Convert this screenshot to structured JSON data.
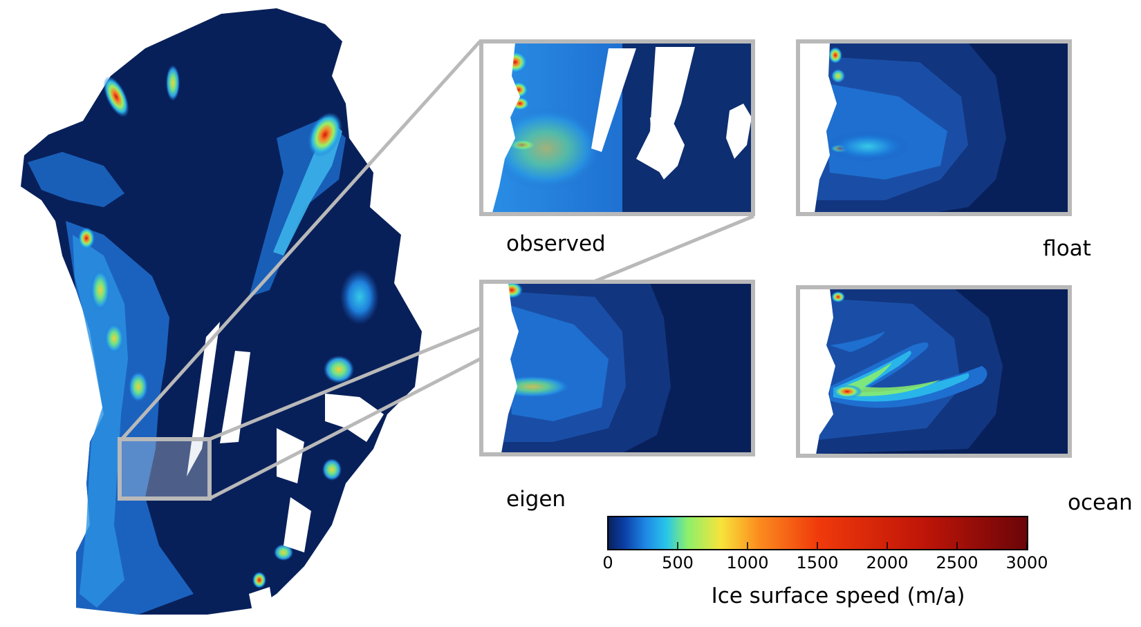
{
  "panels": {
    "observed": "observed",
    "float": "float",
    "eigen": "eigen",
    "ocean": "ocean"
  },
  "colorbar": {
    "title": "Ice surface speed (m/a)",
    "ticks": [
      "0",
      "500",
      "1000",
      "1500",
      "2000",
      "2500",
      "3000"
    ],
    "range": [
      0,
      3000
    ],
    "colormap": [
      "#08205a",
      "#0c3fa8",
      "#1e88e5",
      "#29c6e8",
      "#8cf06a",
      "#f8e33a",
      "#fb8c1f",
      "#f03a0b",
      "#c01508",
      "#6a0508"
    ]
  },
  "colors": {
    "background": "#08205a",
    "mid_speed": "#1e6fd0",
    "frame": "#b9b9b9"
  }
}
